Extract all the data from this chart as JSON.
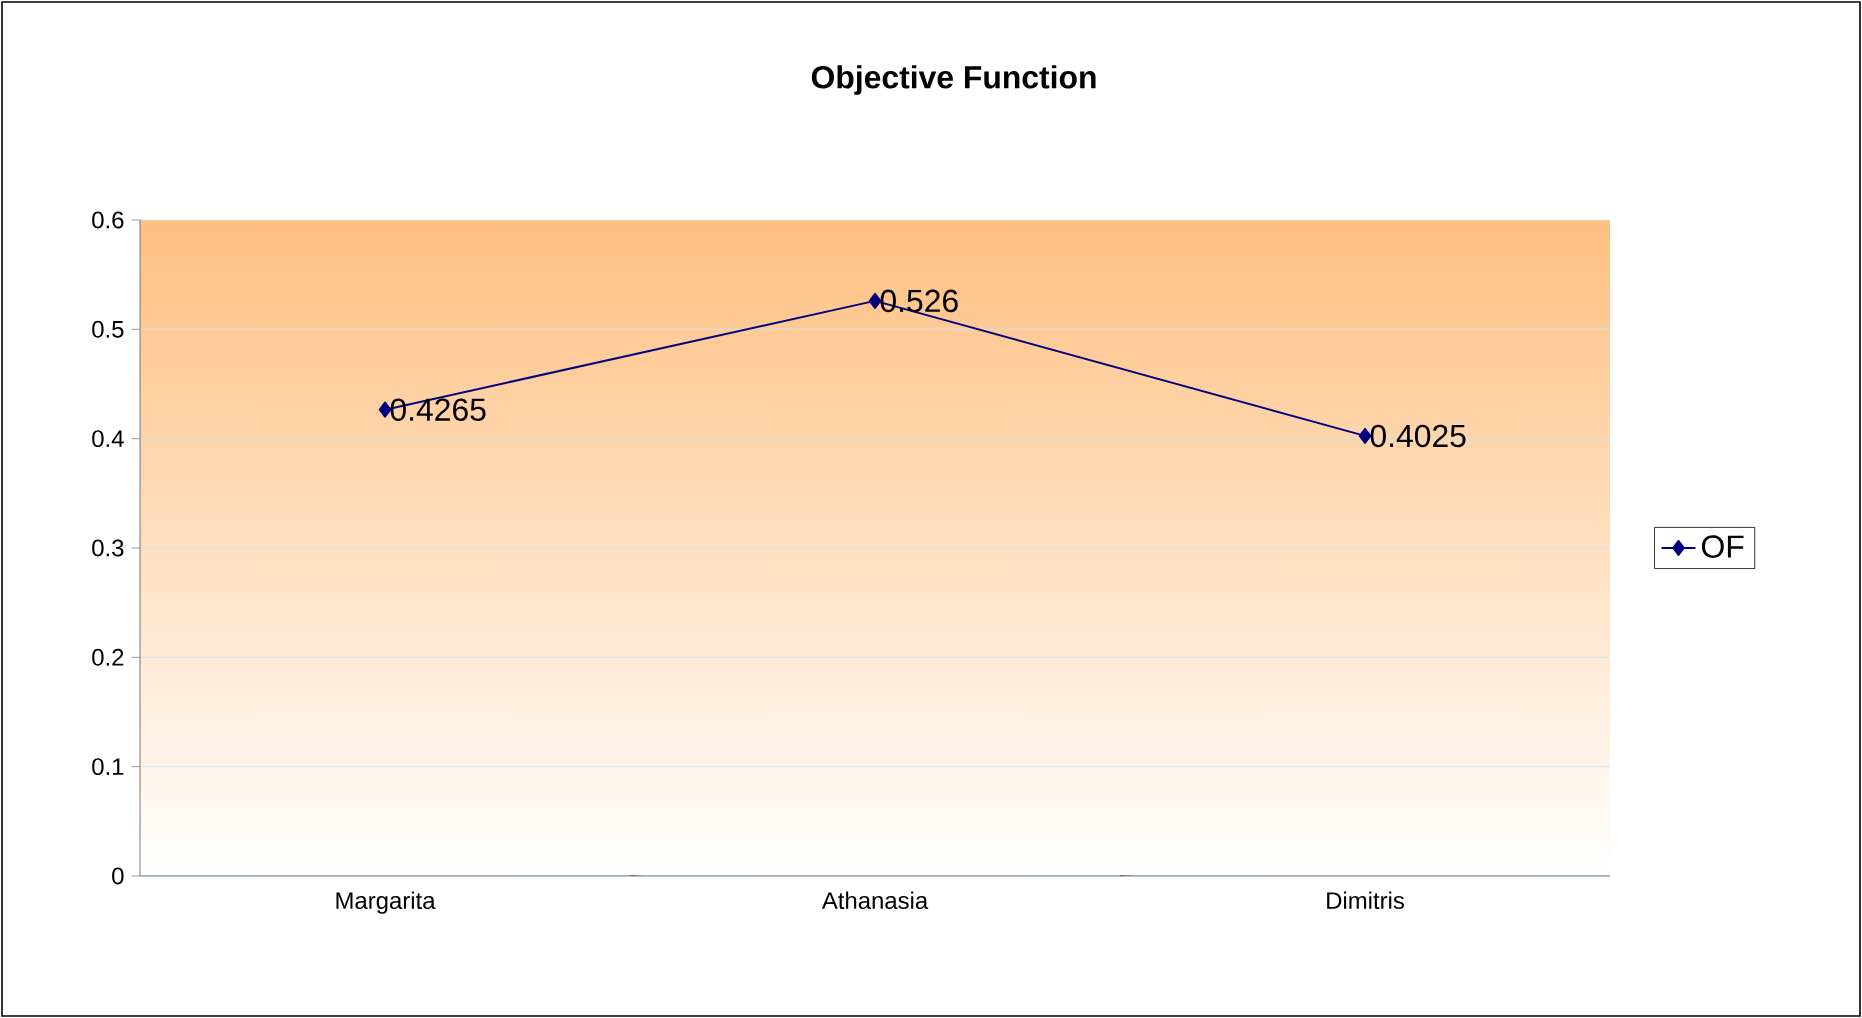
{
  "chart_data": {
    "type": "line",
    "title": "Objective Function",
    "categories": [
      "Margarita",
      "Athanasia",
      "Dimitris"
    ],
    "series": [
      {
        "name": "OF",
        "color": "#000080",
        "values": [
          0.4265,
          0.526,
          0.4025
        ]
      }
    ],
    "ylim": [
      0,
      0.6
    ],
    "yticks": [
      0,
      0.1,
      0.2,
      0.3,
      0.4,
      0.5,
      0.6
    ],
    "grid": "y",
    "legend": "right",
    "marker": "diamond",
    "line_style": "solid",
    "data_labels": true
  }
}
